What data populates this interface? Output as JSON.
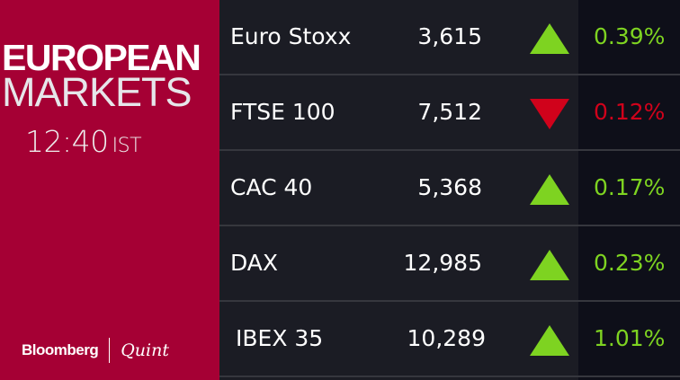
{
  "header": {
    "title_line1": "EUROPEAN",
    "title_line2": "MARKETS",
    "time": "12:40",
    "timezone": "IST"
  },
  "branding": {
    "bloomberg": "Bloomberg",
    "quint": "Quint"
  },
  "colors": {
    "panel": "#a50034",
    "up": "#7ed321",
    "down": "#d0021b"
  },
  "markets": [
    {
      "name": "Euro Stoxx",
      "value": "3,615",
      "direction": "up",
      "change": "0.39%"
    },
    {
      "name": "FTSE 100",
      "value": "7,512",
      "direction": "down",
      "change": "0.12%"
    },
    {
      "name": "CAC 40",
      "value": "5,368",
      "direction": "up",
      "change": "0.17%"
    },
    {
      "name": "DAX",
      "value": "12,985",
      "direction": "up",
      "change": "0.23%"
    },
    {
      "name": "IBEX 35",
      "value": "10,289",
      "direction": "up",
      "change": "1.01%"
    }
  ]
}
